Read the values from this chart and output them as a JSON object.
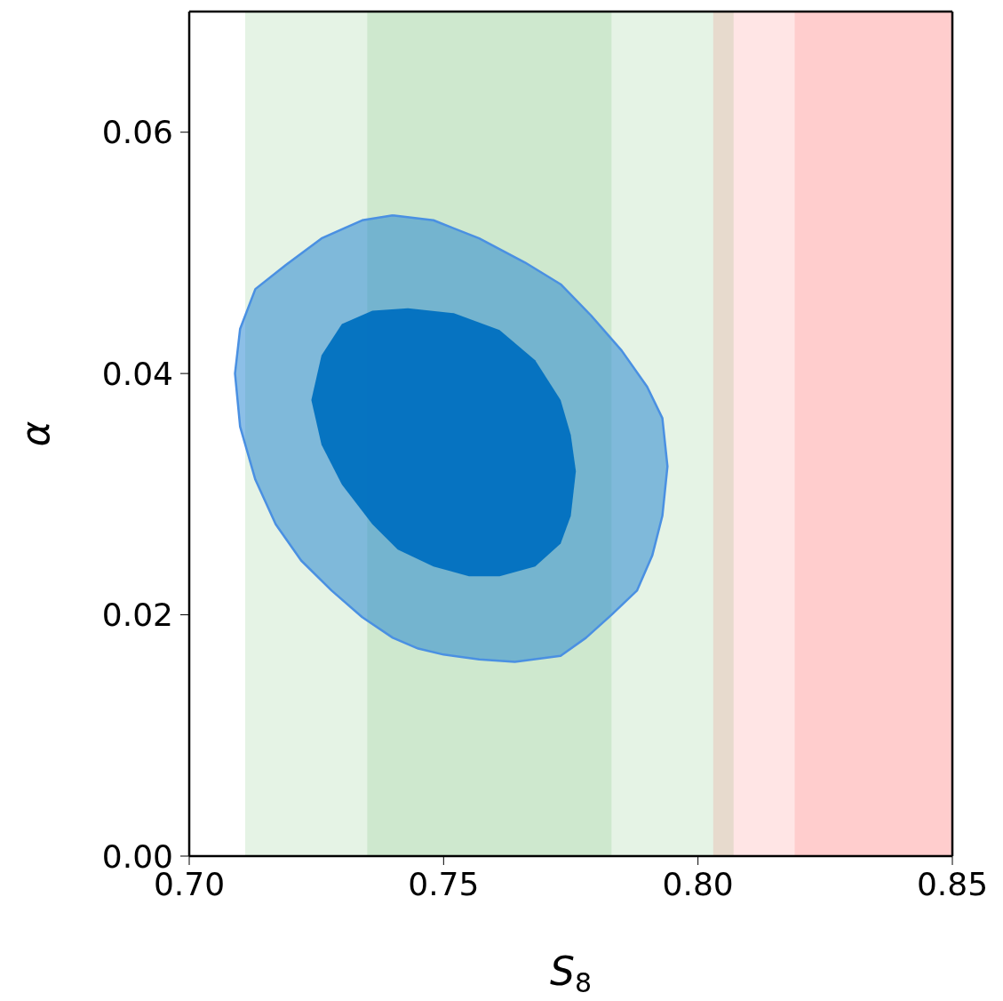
{
  "chart_data": {
    "type": "area",
    "xlabel": "S$_{8}$",
    "ylabel": "α",
    "xlim": [
      0.7,
      0.85
    ],
    "xticks": [
      {
        "value": 0.7,
        "label": "0.70"
      },
      {
        "value": 0.75,
        "label": "0.75"
      },
      {
        "value": 0.8,
        "label": "0.80"
      },
      {
        "value": 0.85,
        "label": "0.85"
      }
    ],
    "ylim": [
      0,
      0.07
    ],
    "yticks": [
      {
        "value": 0,
        "label": "0.00"
      },
      {
        "value": 0.02,
        "label": "0.02"
      },
      {
        "value": 0.04,
        "label": "0.04"
      },
      {
        "value": 0.06,
        "label": "0.06"
      }
    ],
    "grid": false,
    "marker": "none",
    "bands": [
      {
        "axis": "x",
        "from": 0.711,
        "to": 0.807,
        "color": "#2ca02c"
      },
      {
        "axis": "x",
        "from": 0.735,
        "to": 0.783,
        "color": "#2ca02c"
      },
      {
        "axis": "x",
        "from": 0.803,
        "to": 0.85,
        "color": "#ff0000"
      },
      {
        "axis": "x",
        "from": 0.819,
        "to": 0.85,
        "color": "#ff0000"
      }
    ],
    "series": [
      {
        "color": "#1a7fd0",
        "x": [
          0.74,
          0.748,
          0.757,
          0.766,
          0.773,
          0.779,
          0.785,
          0.79,
          0.793,
          0.794,
          0.793,
          0.791,
          0.788,
          0.783,
          0.778,
          0.773,
          0.764,
          0.757,
          0.75,
          0.745,
          0.74,
          0.734,
          0.728,
          0.722,
          0.717,
          0.713,
          0.71,
          0.709,
          0.71,
          0.713,
          0.719,
          0.726,
          0.734,
          0.74
        ],
        "values": [
          0.0531,
          0.0527,
          0.0512,
          0.0492,
          0.0474,
          0.0448,
          0.0419,
          0.0389,
          0.0363,
          0.0323,
          0.0282,
          0.0249,
          0.022,
          0.02,
          0.0181,
          0.0166,
          0.0161,
          0.0163,
          0.0167,
          0.0172,
          0.0181,
          0.0198,
          0.022,
          0.0245,
          0.0275,
          0.0312,
          0.0356,
          0.04,
          0.0437,
          0.047,
          0.049,
          0.0512,
          0.0527,
          0.0531
        ]
      },
      {
        "color": "#0070c0",
        "x": [
          0.743,
          0.752,
          0.761,
          0.768,
          0.773,
          0.775,
          0.776,
          0.775,
          0.773,
          0.768,
          0.761,
          0.755,
          0.748,
          0.741,
          0.736,
          0.73,
          0.726,
          0.724,
          0.726,
          0.73,
          0.736,
          0.743
        ],
        "values": [
          0.0454,
          0.045,
          0.0436,
          0.0411,
          0.0378,
          0.0349,
          0.0319,
          0.0282,
          0.0259,
          0.024,
          0.0232,
          0.0232,
          0.024,
          0.0254,
          0.0275,
          0.0308,
          0.0341,
          0.0378,
          0.0415,
          0.0441,
          0.0452,
          0.0454
        ]
      }
    ]
  }
}
